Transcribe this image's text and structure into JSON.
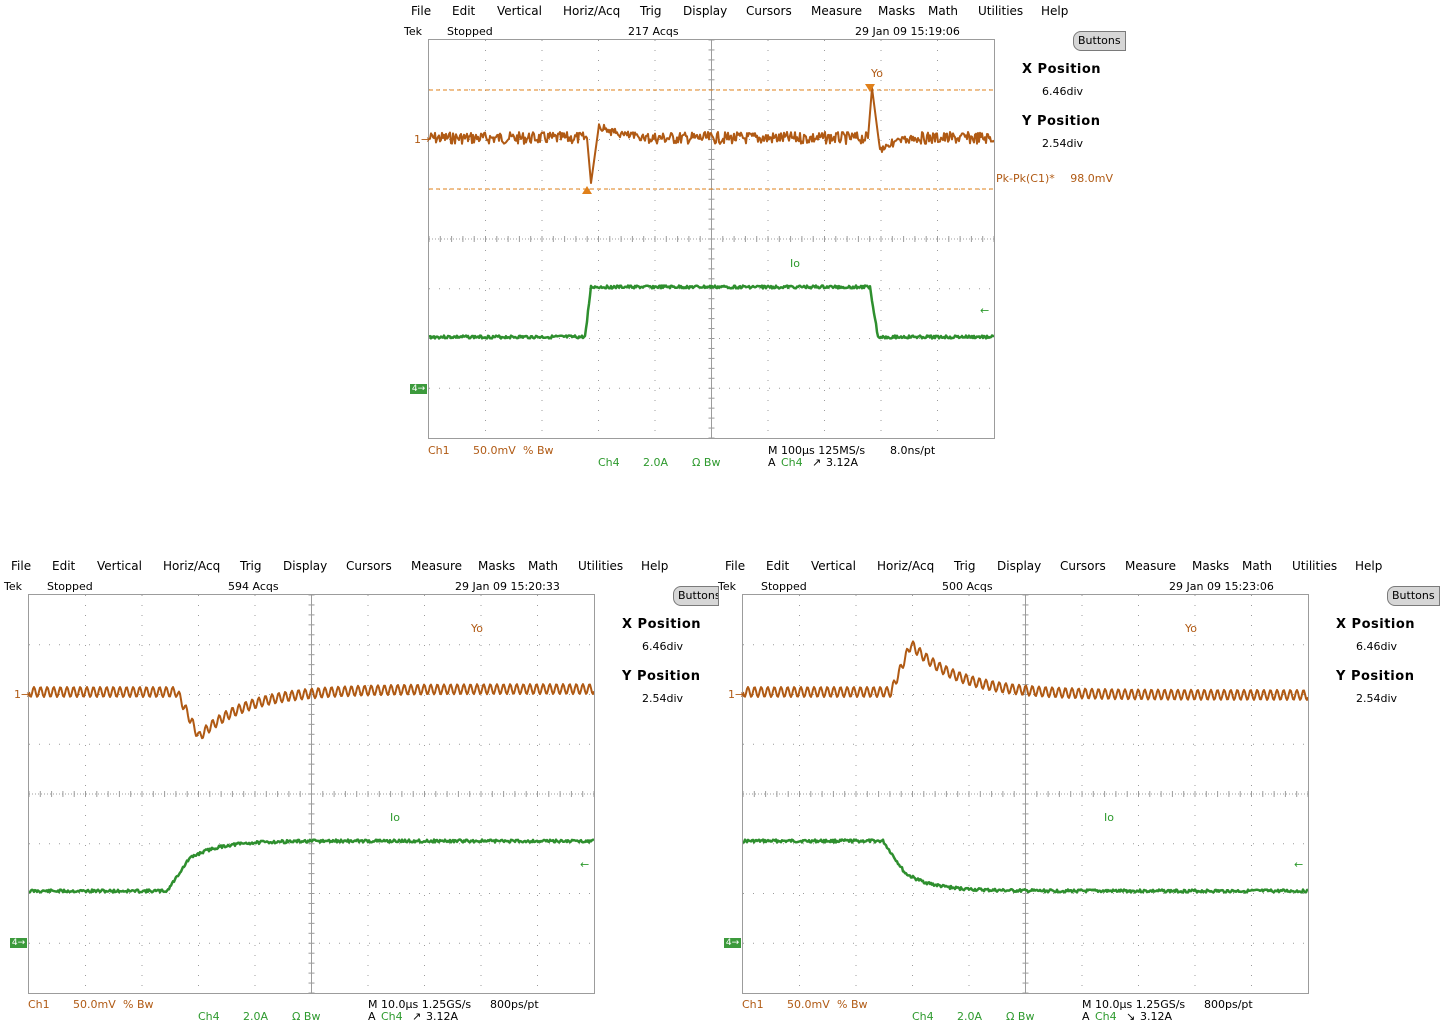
{
  "menu": [
    "File",
    "Edit",
    "Vertical",
    "Horiz/Acq",
    "Trig",
    "Display",
    "Cursors",
    "Measure",
    "Masks",
    "Math",
    "Utilities",
    "Help"
  ],
  "buttons_label": "Buttons",
  "side": {
    "x_title": "X Position",
    "x_value": "6.46div",
    "y_title": "Y Position",
    "y_value": "2.54div"
  },
  "colors": {
    "ch1": "#b05a14",
    "ch4": "#2e8f2e",
    "grid": "#9c9c9c",
    "trigger": "#e0801a"
  },
  "scopes": [
    {
      "brand": "Tek",
      "state": "Stopped",
      "acqs": "217 Acqs",
      "date": "29 Jan 09 15:19:06",
      "trace1_label": "Yo",
      "trace4_label": "Io",
      "ch1_marker": "1",
      "ch4_marker": "4",
      "measurement": {
        "name": "Pk-Pk(C1)*",
        "value": "98.0mV"
      },
      "footer": {
        "ch1": "Ch1",
        "ch1_scale": "50.0mV",
        "ch1_flags": "% Bw",
        "ch4": "Ch4",
        "ch4_scale": "2.0A",
        "ch4_flags": "Ω Bw",
        "timebase": "M 100µs 125MS/s",
        "resolution": "8.0ns/pt",
        "trigger": "A",
        "trigger_src": "Ch4",
        "trigger_slope": "↗",
        "trigger_level": "3.12A"
      }
    },
    {
      "brand": "Tek",
      "state": "Stopped",
      "acqs": "594 Acqs",
      "date": "29 Jan 09 15:20:33",
      "trace1_label": "Yo",
      "trace4_label": "Io",
      "ch1_marker": "1",
      "ch4_marker": "4",
      "footer": {
        "ch1": "Ch1",
        "ch1_scale": "50.0mV",
        "ch1_flags": "% Bw",
        "ch4": "Ch4",
        "ch4_scale": "2.0A",
        "ch4_flags": "Ω Bw",
        "timebase": "M 10.0µs 1.25GS/s",
        "resolution": "800ps/pt",
        "trigger": "A",
        "trigger_src": "Ch4",
        "trigger_slope": "↗",
        "trigger_level": "3.12A"
      }
    },
    {
      "brand": "Tek",
      "state": "Stopped",
      "acqs": "500 Acqs",
      "date": "29 Jan 09 15:23:06",
      "trace1_label": "Yo",
      "trace4_label": "Io",
      "ch1_marker": "1",
      "ch4_marker": "4",
      "footer": {
        "ch1": "Ch1",
        "ch1_scale": "50.0mV",
        "ch1_flags": "% Bw",
        "ch4": "Ch4",
        "ch4_scale": "2.0A",
        "ch4_flags": "Ω Bw",
        "timebase": "M 10.0µs 1.25GS/s",
        "resolution": "800ps/pt",
        "trigger": "A",
        "trigger_src": "Ch4",
        "trigger_slope": "↘",
        "trigger_level": "3.12A"
      }
    }
  ]
}
